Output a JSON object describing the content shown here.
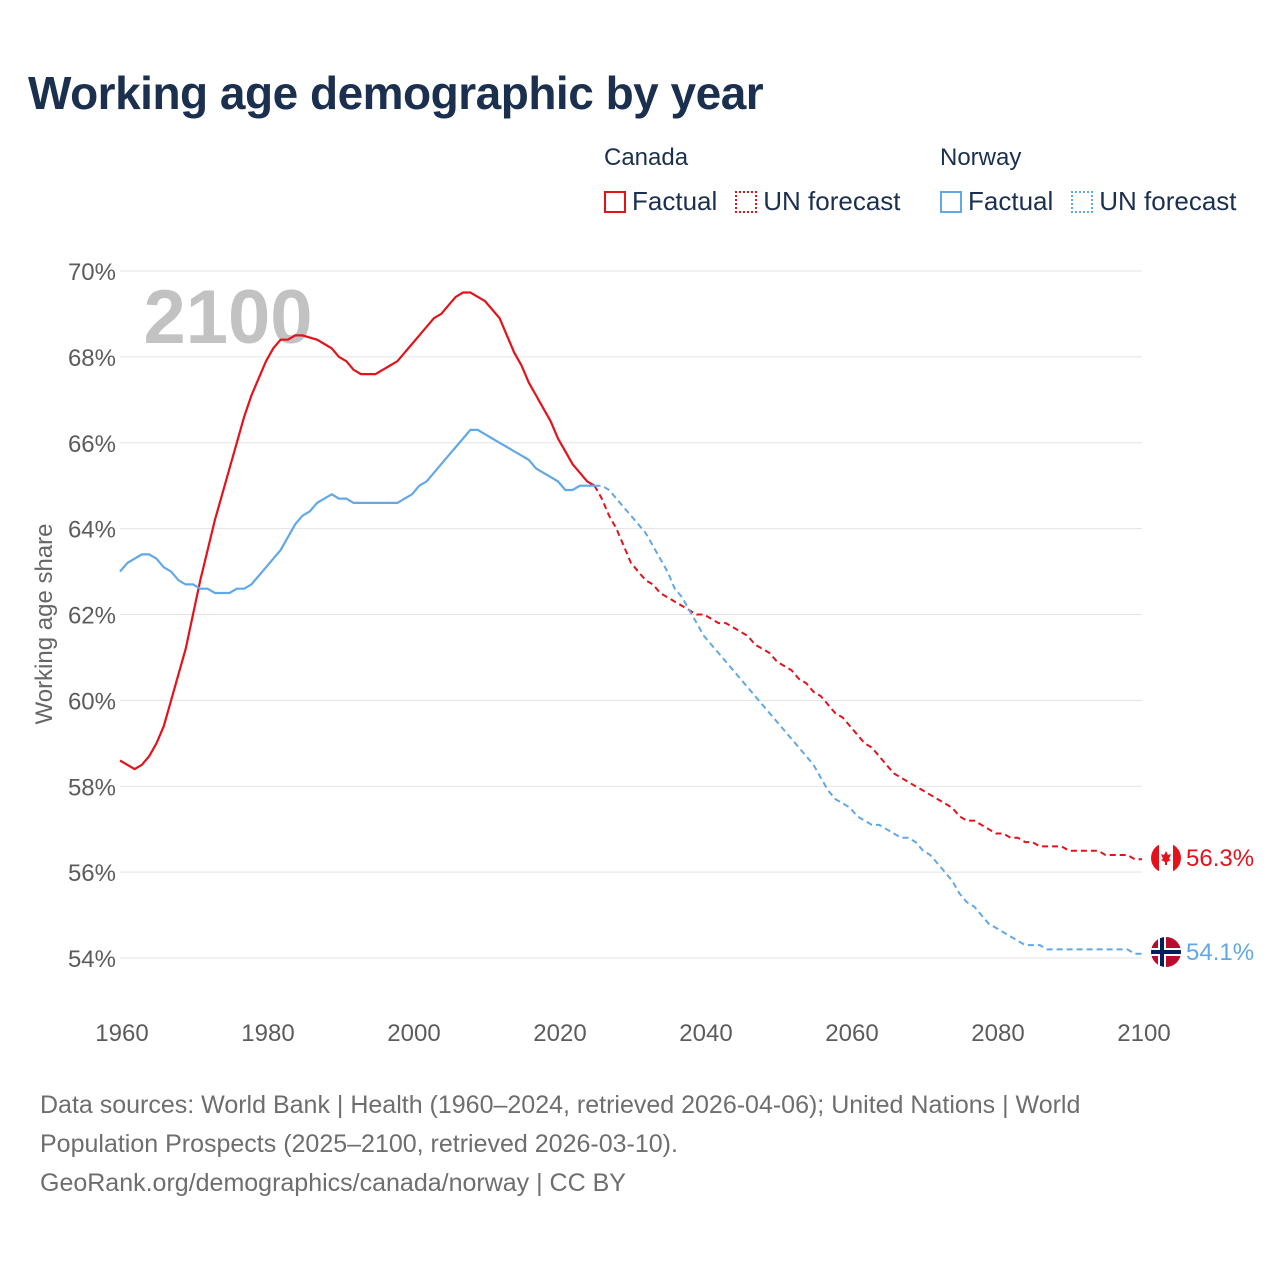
{
  "title": "Working age demographic by year",
  "legend": [
    {
      "country": "Canada",
      "factual_label": "Factual",
      "forecast_label": "UN forecast",
      "color": "#e3121b"
    },
    {
      "country": "Norway",
      "factual_label": "Factual",
      "forecast_label": "UN forecast",
      "color": "#62a8e5"
    }
  ],
  "sources": {
    "line1": "Data sources: World Bank | Health (1960–2024, retrieved 2026-04-06); United Nations | World",
    "line2": "Population Prospects (2025–2100, retrieved 2026-03-10).",
    "line3": "GeoRank.org/demographics/canada/norway | CC BY"
  },
  "chart_data": {
    "type": "line",
    "title": "Working age demographic by year",
    "ylabel": "Working age share",
    "xlabel": "",
    "year_watermark": "2100",
    "xlim": [
      1960,
      2100
    ],
    "ylim": [
      53,
      70
    ],
    "x_ticks": [
      1960,
      1980,
      2000,
      2020,
      2040,
      2060,
      2080,
      2100
    ],
    "y_ticks": [
      54,
      56,
      58,
      60,
      62,
      64,
      66,
      68,
      70
    ],
    "y_tick_labels": [
      "54%",
      "56%",
      "58%",
      "60%",
      "62%",
      "64%",
      "66%",
      "68%",
      "70%"
    ],
    "grid": true,
    "factual_end_year": 2024,
    "series": [
      {
        "name": "Canada",
        "color": "#e3121b",
        "end_label": "56.3%",
        "points": [
          [
            1960,
            58.6
          ],
          [
            1961,
            58.5
          ],
          [
            1962,
            58.4
          ],
          [
            1963,
            58.5
          ],
          [
            1964,
            58.7
          ],
          [
            1965,
            59.0
          ],
          [
            1966,
            59.4
          ],
          [
            1967,
            60.0
          ],
          [
            1968,
            60.6
          ],
          [
            1969,
            61.2
          ],
          [
            1970,
            62.0
          ],
          [
            1971,
            62.8
          ],
          [
            1972,
            63.5
          ],
          [
            1973,
            64.2
          ],
          [
            1974,
            64.8
          ],
          [
            1975,
            65.4
          ],
          [
            1976,
            66.0
          ],
          [
            1977,
            66.6
          ],
          [
            1978,
            67.1
          ],
          [
            1979,
            67.5
          ],
          [
            1980,
            67.9
          ],
          [
            1981,
            68.2
          ],
          [
            1982,
            68.4
          ],
          [
            1983,
            68.4
          ],
          [
            1984,
            68.5
          ],
          [
            1985,
            68.5
          ],
          [
            1986,
            68.45
          ],
          [
            1987,
            68.4
          ],
          [
            1988,
            68.3
          ],
          [
            1989,
            68.2
          ],
          [
            1990,
            68.0
          ],
          [
            1991,
            67.9
          ],
          [
            1992,
            67.7
          ],
          [
            1993,
            67.6
          ],
          [
            1994,
            67.6
          ],
          [
            1995,
            67.6
          ],
          [
            1996,
            67.7
          ],
          [
            1997,
            67.8
          ],
          [
            1998,
            67.9
          ],
          [
            1999,
            68.1
          ],
          [
            2000,
            68.3
          ],
          [
            2001,
            68.5
          ],
          [
            2002,
            68.7
          ],
          [
            2003,
            68.9
          ],
          [
            2004,
            69.0
          ],
          [
            2005,
            69.2
          ],
          [
            2006,
            69.4
          ],
          [
            2007,
            69.5
          ],
          [
            2008,
            69.5
          ],
          [
            2009,
            69.4
          ],
          [
            2010,
            69.3
          ],
          [
            2011,
            69.1
          ],
          [
            2012,
            68.9
          ],
          [
            2013,
            68.5
          ],
          [
            2014,
            68.1
          ],
          [
            2015,
            67.8
          ],
          [
            2016,
            67.4
          ],
          [
            2017,
            67.1
          ],
          [
            2018,
            66.8
          ],
          [
            2019,
            66.5
          ],
          [
            2020,
            66.1
          ],
          [
            2021,
            65.8
          ],
          [
            2022,
            65.5
          ],
          [
            2023,
            65.3
          ],
          [
            2024,
            65.1
          ],
          [
            2025,
            65.0
          ],
          [
            2026,
            64.7
          ],
          [
            2027,
            64.3
          ],
          [
            2028,
            64.0
          ],
          [
            2029,
            63.6
          ],
          [
            2030,
            63.2
          ],
          [
            2031,
            63.0
          ],
          [
            2032,
            62.8
          ],
          [
            2033,
            62.7
          ],
          [
            2034,
            62.5
          ],
          [
            2035,
            62.4
          ],
          [
            2036,
            62.3
          ],
          [
            2037,
            62.2
          ],
          [
            2038,
            62.1
          ],
          [
            2039,
            62.0
          ],
          [
            2040,
            62.0
          ],
          [
            2041,
            61.9
          ],
          [
            2042,
            61.8
          ],
          [
            2043,
            61.8
          ],
          [
            2044,
            61.7
          ],
          [
            2045,
            61.6
          ],
          [
            2046,
            61.5
          ],
          [
            2047,
            61.3
          ],
          [
            2048,
            61.2
          ],
          [
            2049,
            61.1
          ],
          [
            2050,
            60.9
          ],
          [
            2051,
            60.8
          ],
          [
            2052,
            60.7
          ],
          [
            2053,
            60.5
          ],
          [
            2054,
            60.4
          ],
          [
            2055,
            60.2
          ],
          [
            2056,
            60.1
          ],
          [
            2057,
            59.9
          ],
          [
            2058,
            59.7
          ],
          [
            2059,
            59.6
          ],
          [
            2060,
            59.4
          ],
          [
            2061,
            59.2
          ],
          [
            2062,
            59.0
          ],
          [
            2063,
            58.9
          ],
          [
            2064,
            58.7
          ],
          [
            2065,
            58.5
          ],
          [
            2066,
            58.3
          ],
          [
            2067,
            58.2
          ],
          [
            2068,
            58.1
          ],
          [
            2069,
            58.0
          ],
          [
            2070,
            57.9
          ],
          [
            2071,
            57.8
          ],
          [
            2072,
            57.7
          ],
          [
            2073,
            57.6
          ],
          [
            2074,
            57.5
          ],
          [
            2075,
            57.3
          ],
          [
            2076,
            57.2
          ],
          [
            2077,
            57.2
          ],
          [
            2078,
            57.1
          ],
          [
            2079,
            57.0
          ],
          [
            2080,
            56.9
          ],
          [
            2081,
            56.9
          ],
          [
            2082,
            56.8
          ],
          [
            2083,
            56.8
          ],
          [
            2084,
            56.7
          ],
          [
            2085,
            56.7
          ],
          [
            2086,
            56.6
          ],
          [
            2087,
            56.6
          ],
          [
            2088,
            56.6
          ],
          [
            2089,
            56.6
          ],
          [
            2090,
            56.5
          ],
          [
            2091,
            56.5
          ],
          [
            2092,
            56.5
          ],
          [
            2093,
            56.5
          ],
          [
            2094,
            56.5
          ],
          [
            2095,
            56.4
          ],
          [
            2096,
            56.4
          ],
          [
            2097,
            56.4
          ],
          [
            2098,
            56.4
          ],
          [
            2099,
            56.3
          ],
          [
            2100,
            56.3
          ]
        ]
      },
      {
        "name": "Norway",
        "color": "#62a8e5",
        "end_label": "54.1%",
        "points": [
          [
            1960,
            63.0
          ],
          [
            1961,
            63.2
          ],
          [
            1962,
            63.3
          ],
          [
            1963,
            63.4
          ],
          [
            1964,
            63.4
          ],
          [
            1965,
            63.3
          ],
          [
            1966,
            63.1
          ],
          [
            1967,
            63.0
          ],
          [
            1968,
            62.8
          ],
          [
            1969,
            62.7
          ],
          [
            1970,
            62.7
          ],
          [
            1971,
            62.6
          ],
          [
            1972,
            62.6
          ],
          [
            1973,
            62.5
          ],
          [
            1974,
            62.5
          ],
          [
            1975,
            62.5
          ],
          [
            1976,
            62.6
          ],
          [
            1977,
            62.6
          ],
          [
            1978,
            62.7
          ],
          [
            1979,
            62.9
          ],
          [
            1980,
            63.1
          ],
          [
            1981,
            63.3
          ],
          [
            1982,
            63.5
          ],
          [
            1983,
            63.8
          ],
          [
            1984,
            64.1
          ],
          [
            1985,
            64.3
          ],
          [
            1986,
            64.4
          ],
          [
            1987,
            64.6
          ],
          [
            1988,
            64.7
          ],
          [
            1989,
            64.8
          ],
          [
            1990,
            64.7
          ],
          [
            1991,
            64.7
          ],
          [
            1992,
            64.6
          ],
          [
            1993,
            64.6
          ],
          [
            1994,
            64.6
          ],
          [
            1995,
            64.6
          ],
          [
            1996,
            64.6
          ],
          [
            1997,
            64.6
          ],
          [
            1998,
            64.6
          ],
          [
            1999,
            64.7
          ],
          [
            2000,
            64.8
          ],
          [
            2001,
            65.0
          ],
          [
            2002,
            65.1
          ],
          [
            2003,
            65.3
          ],
          [
            2004,
            65.5
          ],
          [
            2005,
            65.7
          ],
          [
            2006,
            65.9
          ],
          [
            2007,
            66.1
          ],
          [
            2008,
            66.3
          ],
          [
            2009,
            66.3
          ],
          [
            2010,
            66.2
          ],
          [
            2011,
            66.1
          ],
          [
            2012,
            66.0
          ],
          [
            2013,
            65.9
          ],
          [
            2014,
            65.8
          ],
          [
            2015,
            65.7
          ],
          [
            2016,
            65.6
          ],
          [
            2017,
            65.4
          ],
          [
            2018,
            65.3
          ],
          [
            2019,
            65.2
          ],
          [
            2020,
            65.1
          ],
          [
            2021,
            64.9
          ],
          [
            2022,
            64.9
          ],
          [
            2023,
            65.0
          ],
          [
            2024,
            65.0
          ],
          [
            2025,
            65.0
          ],
          [
            2026,
            65.0
          ],
          [
            2027,
            64.9
          ],
          [
            2028,
            64.7
          ],
          [
            2029,
            64.5
          ],
          [
            2030,
            64.3
          ],
          [
            2031,
            64.1
          ],
          [
            2032,
            63.9
          ],
          [
            2033,
            63.6
          ],
          [
            2034,
            63.3
          ],
          [
            2035,
            63.0
          ],
          [
            2036,
            62.6
          ],
          [
            2037,
            62.4
          ],
          [
            2038,
            62.1
          ],
          [
            2039,
            61.8
          ],
          [
            2040,
            61.5
          ],
          [
            2041,
            61.3
          ],
          [
            2042,
            61.1
          ],
          [
            2043,
            60.9
          ],
          [
            2044,
            60.7
          ],
          [
            2045,
            60.5
          ],
          [
            2046,
            60.3
          ],
          [
            2047,
            60.1
          ],
          [
            2048,
            59.9
          ],
          [
            2049,
            59.7
          ],
          [
            2050,
            59.5
          ],
          [
            2051,
            59.3
          ],
          [
            2052,
            59.1
          ],
          [
            2053,
            58.9
          ],
          [
            2054,
            58.7
          ],
          [
            2055,
            58.5
          ],
          [
            2056,
            58.2
          ],
          [
            2057,
            57.9
          ],
          [
            2058,
            57.7
          ],
          [
            2059,
            57.6
          ],
          [
            2060,
            57.5
          ],
          [
            2061,
            57.3
          ],
          [
            2062,
            57.2
          ],
          [
            2063,
            57.1
          ],
          [
            2064,
            57.1
          ],
          [
            2065,
            57.0
          ],
          [
            2066,
            56.9
          ],
          [
            2067,
            56.8
          ],
          [
            2068,
            56.8
          ],
          [
            2069,
            56.7
          ],
          [
            2070,
            56.5
          ],
          [
            2071,
            56.4
          ],
          [
            2072,
            56.2
          ],
          [
            2073,
            56.0
          ],
          [
            2074,
            55.8
          ],
          [
            2075,
            55.5
          ],
          [
            2076,
            55.3
          ],
          [
            2077,
            55.2
          ],
          [
            2078,
            55.0
          ],
          [
            2079,
            54.8
          ],
          [
            2080,
            54.7
          ],
          [
            2081,
            54.6
          ],
          [
            2082,
            54.5
          ],
          [
            2083,
            54.4
          ],
          [
            2084,
            54.3
          ],
          [
            2085,
            54.3
          ],
          [
            2086,
            54.3
          ],
          [
            2087,
            54.2
          ],
          [
            2088,
            54.2
          ],
          [
            2089,
            54.2
          ],
          [
            2090,
            54.2
          ],
          [
            2091,
            54.2
          ],
          [
            2092,
            54.2
          ],
          [
            2093,
            54.2
          ],
          [
            2094,
            54.2
          ],
          [
            2095,
            54.2
          ],
          [
            2096,
            54.2
          ],
          [
            2097,
            54.2
          ],
          [
            2098,
            54.2
          ],
          [
            2099,
            54.1
          ],
          [
            2100,
            54.1
          ]
        ]
      }
    ]
  }
}
